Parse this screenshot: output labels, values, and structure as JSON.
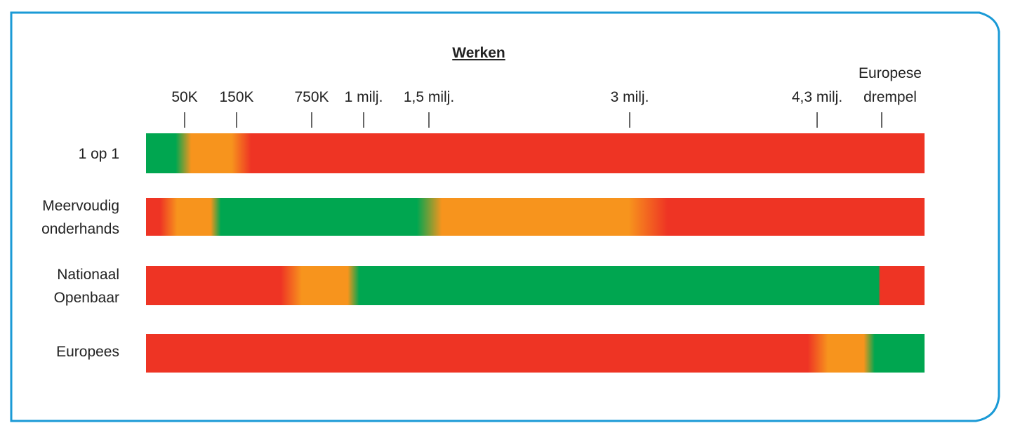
{
  "title": "Werken",
  "thresholds": [
    "50K",
    "150K",
    "750K",
    "1 milj.",
    "1,5 milj.",
    "3 milj.",
    "4,3 milj."
  ],
  "european_threshold": [
    "Europese",
    "drempel"
  ],
  "rows": [
    {
      "label": [
        "1 op 1"
      ]
    },
    {
      "label": [
        "Meervoudig",
        "onderhands"
      ]
    },
    {
      "label": [
        "Nationaal",
        "Openbaar"
      ]
    },
    {
      "label": [
        "Europees"
      ]
    }
  ]
}
